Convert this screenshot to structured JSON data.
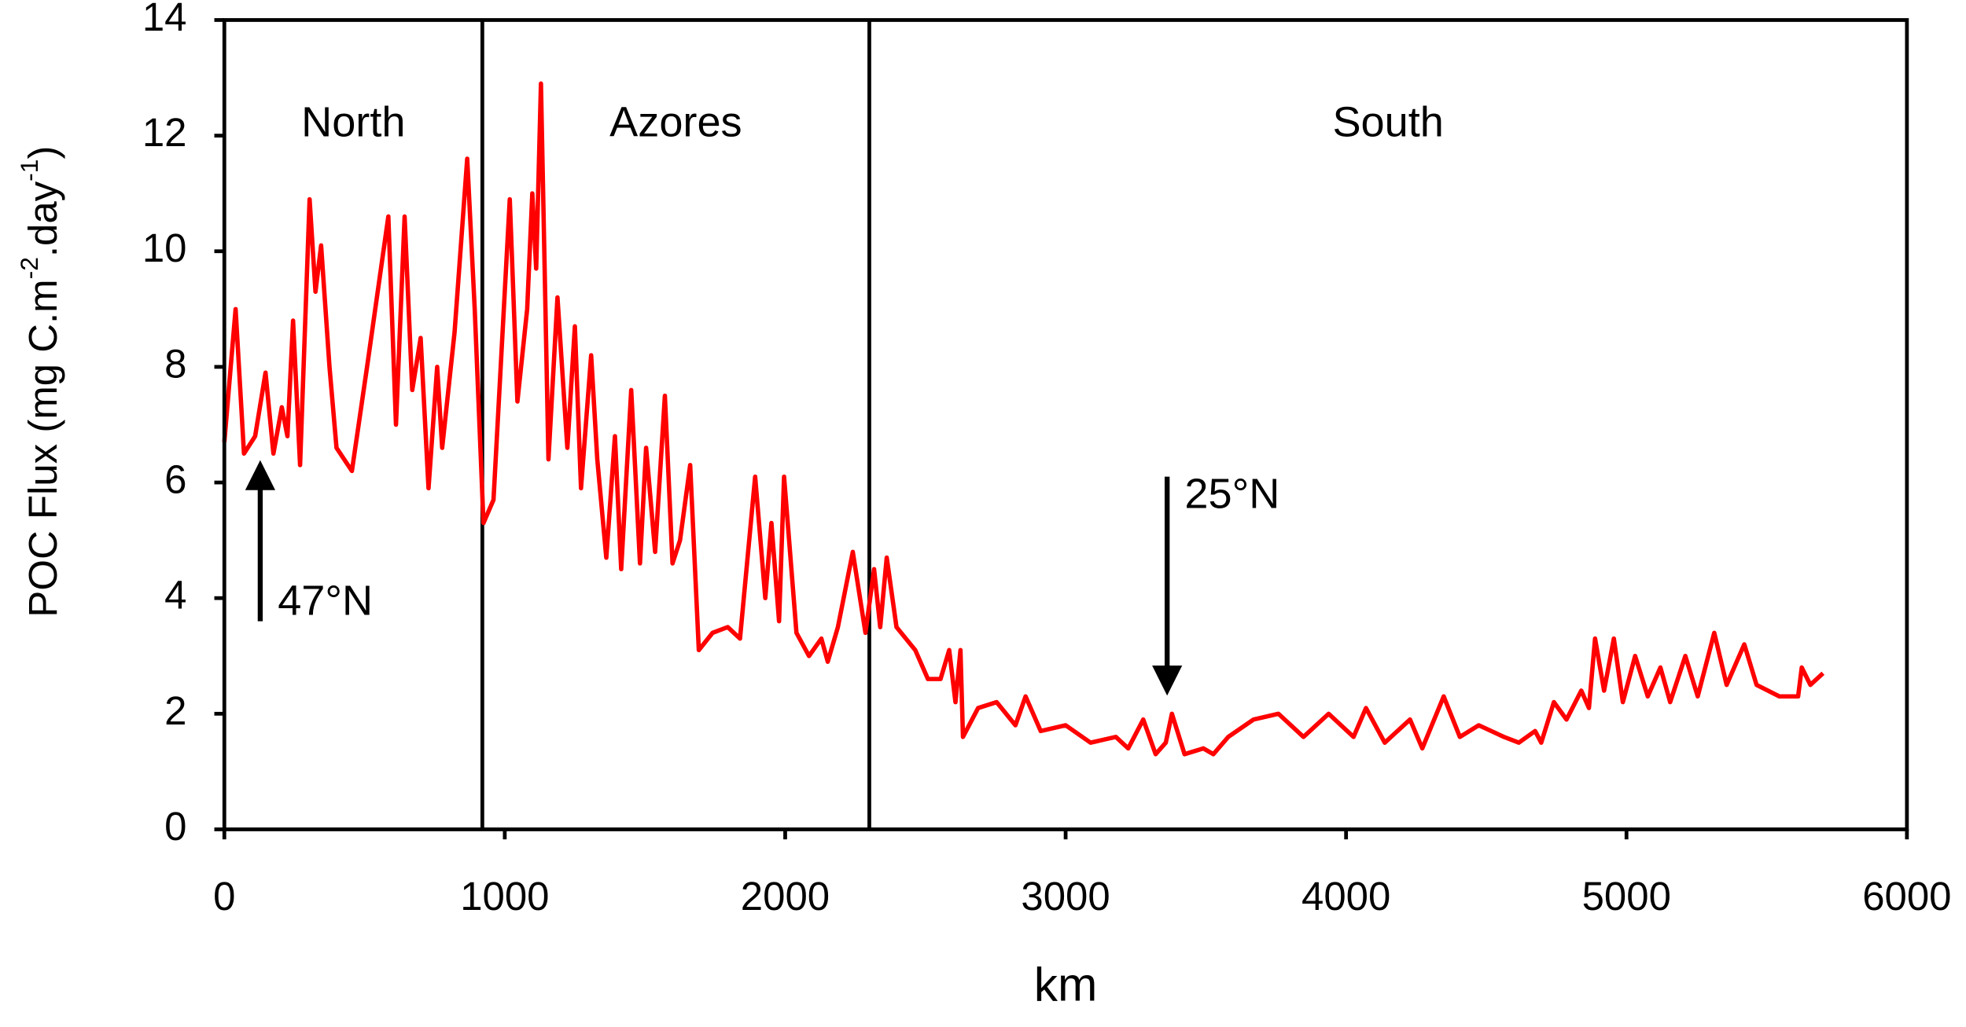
{
  "chart_data": {
    "type": "line",
    "x_label": "km",
    "y_label_parts": [
      "POC Flux (mg C.m",
      "-2",
      ".day",
      "-1",
      ")"
    ],
    "xlim": [
      0,
      6000
    ],
    "xticks": [
      0,
      1000,
      2000,
      3000,
      4000,
      5000,
      6000
    ],
    "ylim": [
      0,
      14
    ],
    "yticks": [
      0,
      2,
      4,
      6,
      8,
      10,
      12,
      14
    ],
    "dividers": [
      920,
      2300
    ],
    "regions": [
      "North",
      "Azores",
      "South"
    ],
    "arrows": [
      {
        "text": "47°N",
        "x": 128,
        "y_from": 3.6,
        "y_to": 6.3
      },
      {
        "text": "25°N",
        "x": 3362,
        "y_from": 6.1,
        "y_to": 2.4
      }
    ],
    "series": [
      {
        "color": "#ff0000",
        "x": [
          0,
          40,
          70,
          110,
          147,
          175,
          205,
          225,
          245,
          270,
          304,
          325,
          345,
          375,
          400,
          455,
          509,
          585,
          612,
          643,
          670,
          700,
          728,
          759,
          777,
          821,
          866,
          893,
          924,
          960,
          1018,
          1045,
          1080,
          1098,
          1112,
          1129,
          1156,
          1188,
          1223,
          1250,
          1272,
          1308,
          1330,
          1362,
          1393,
          1415,
          1451,
          1482,
          1504,
          1536,
          1571,
          1598,
          1625,
          1661,
          1692,
          1741,
          1795,
          1839,
          1893,
          1929,
          1951,
          1978,
          1996,
          2040,
          2085,
          2129,
          2152,
          2188,
          2241,
          2286,
          2317,
          2339,
          2362,
          2397,
          2464,
          2509,
          2554,
          2585,
          2607,
          2625,
          2634,
          2688,
          2754,
          2821,
          2857,
          2911,
          3000,
          3089,
          3179,
          3223,
          3277,
          3321,
          3357,
          3379,
          3424,
          3491,
          3527,
          3580,
          3670,
          3759,
          3848,
          3938,
          4027,
          4071,
          4138,
          4228,
          4272,
          4348,
          4406,
          4473,
          4563,
          4616,
          4674,
          4696,
          4741,
          4786,
          4839,
          4866,
          4888,
          4920,
          4955,
          4987,
          5031,
          5076,
          5121,
          5156,
          5210,
          5254,
          5313,
          5357,
          5420,
          5464,
          5545,
          5612,
          5625,
          5656,
          5701
        ],
        "values": [
          6.7,
          9.0,
          6.5,
          6.8,
          7.9,
          6.5,
          7.3,
          6.8,
          8.8,
          6.3,
          10.9,
          9.3,
          10.1,
          8.0,
          6.6,
          6.2,
          8.0,
          10.6,
          7.0,
          10.6,
          7.6,
          8.5,
          5.9,
          8.0,
          6.6,
          8.6,
          11.6,
          9.0,
          5.3,
          5.7,
          10.9,
          7.4,
          9.0,
          11.0,
          9.7,
          12.9,
          6.4,
          9.2,
          6.6,
          8.7,
          5.9,
          8.2,
          6.4,
          4.7,
          6.8,
          4.5,
          7.6,
          4.6,
          6.6,
          4.8,
          7.5,
          4.6,
          5.0,
          6.3,
          3.1,
          3.4,
          3.5,
          3.3,
          6.1,
          4.0,
          5.3,
          3.6,
          6.1,
          3.4,
          3.0,
          3.3,
          2.9,
          3.5,
          4.8,
          3.4,
          4.5,
          3.5,
          4.7,
          3.5,
          3.1,
          2.6,
          2.6,
          3.1,
          2.2,
          3.1,
          1.6,
          2.1,
          2.2,
          1.8,
          2.3,
          1.7,
          1.8,
          1.5,
          1.6,
          1.4,
          1.9,
          1.3,
          1.5,
          2.0,
          1.3,
          1.4,
          1.3,
          1.6,
          1.9,
          2.0,
          1.6,
          2.0,
          1.6,
          2.1,
          1.5,
          1.9,
          1.4,
          2.3,
          1.6,
          1.8,
          1.6,
          1.5,
          1.7,
          1.5,
          2.2,
          1.9,
          2.4,
          2.1,
          3.3,
          2.4,
          3.3,
          2.2,
          3.0,
          2.3,
          2.8,
          2.2,
          3.0,
          2.3,
          3.4,
          2.5,
          3.2,
          2.5,
          2.3,
          2.3,
          2.8,
          2.5,
          2.7
        ]
      }
    ]
  }
}
